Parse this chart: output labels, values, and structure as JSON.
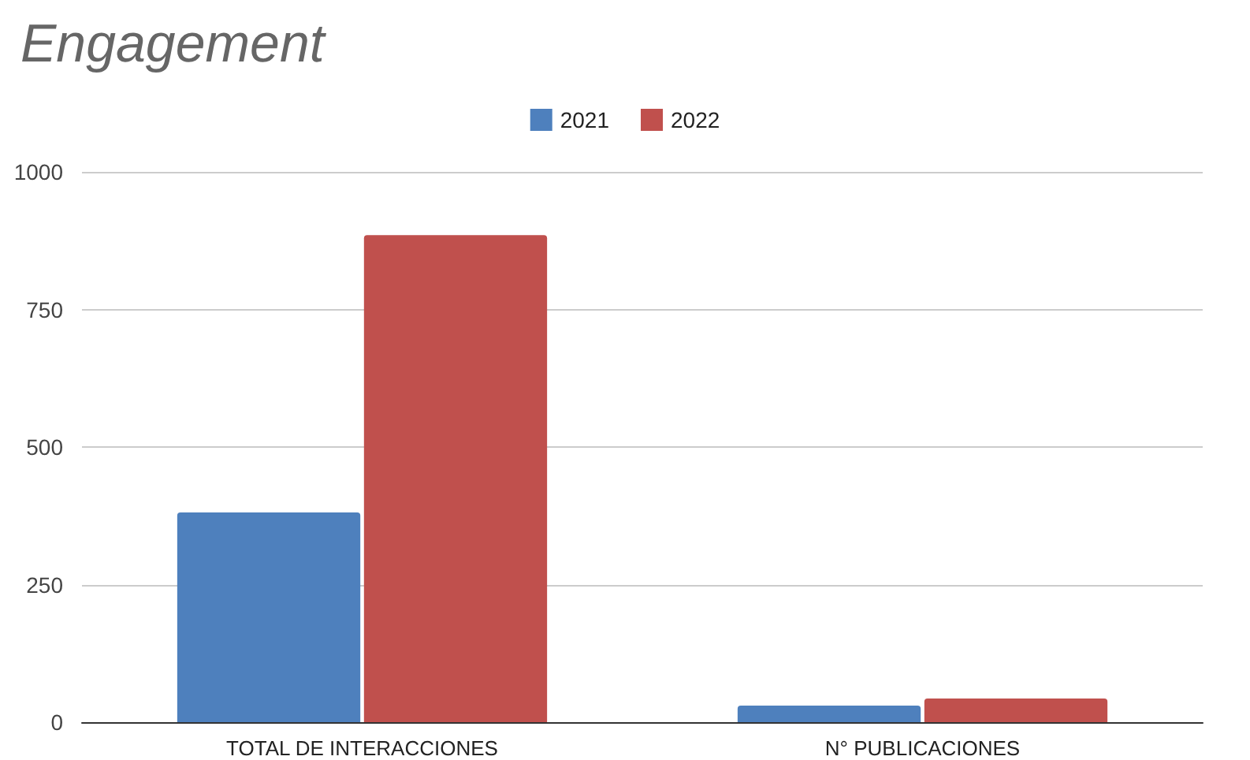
{
  "chart_data": {
    "type": "bar",
    "title": "Engagement",
    "categories": [
      "TOTAL DE INTERACCIONES",
      "N° PUBLICACIONES"
    ],
    "series": [
      {
        "name": "2021",
        "color": "#4e80bd",
        "values": [
          381,
          30
        ]
      },
      {
        "name": "2022",
        "color": "#c0504d",
        "values": [
          885,
          43
        ]
      }
    ],
    "ylim": [
      0,
      1000
    ],
    "yticks": [
      0,
      250,
      500,
      750,
      1000
    ],
    "grid": "y",
    "legend": "top"
  }
}
